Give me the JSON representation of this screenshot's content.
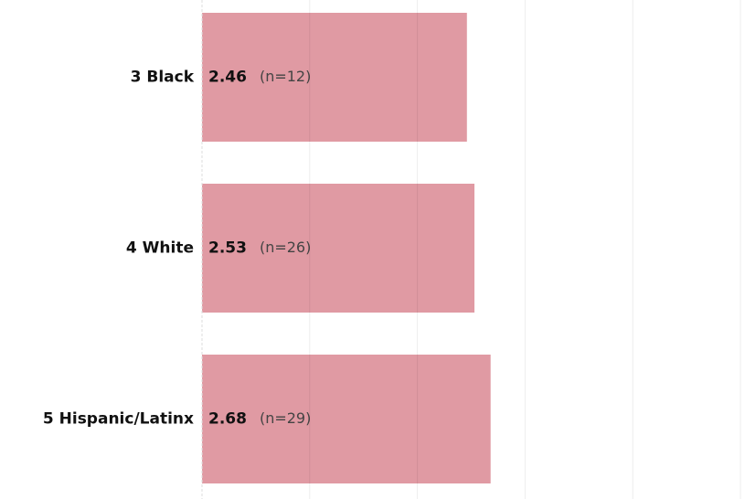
{
  "chart_data": {
    "type": "bar",
    "orientation": "horizontal",
    "categories": [
      "3 Black",
      "4 White",
      "5 Hispanic/Latinx"
    ],
    "values": [
      2.46,
      2.53,
      2.68
    ],
    "n_labels": [
      "(n=12)",
      "(n=26)",
      "(n=29)"
    ],
    "color": "#e09aa3",
    "xlim": [
      0,
      5
    ],
    "xticks": [
      0,
      1,
      2,
      3,
      4,
      5
    ],
    "grid": true
  }
}
